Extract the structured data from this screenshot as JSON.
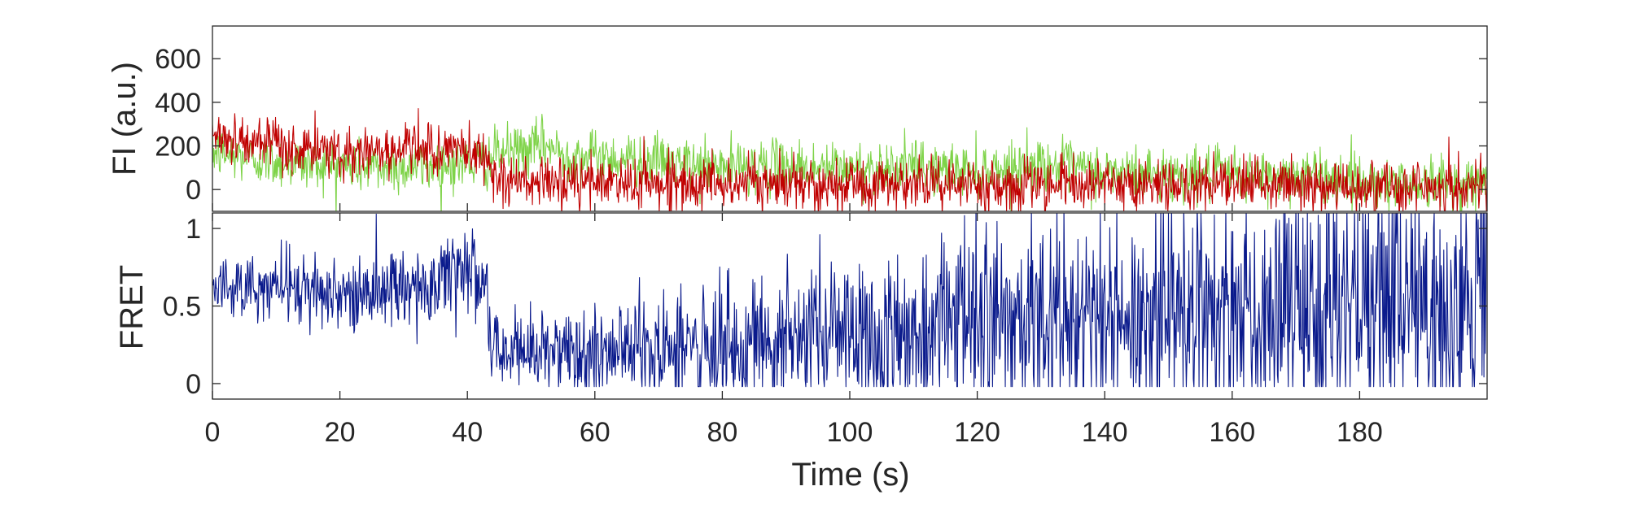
{
  "chart_data": [
    {
      "type": "line",
      "panel": "top",
      "ylabel": "FI (a.u.)",
      "xlim": [
        0,
        200
      ],
      "ylim": [
        -100,
        750
      ],
      "yticks": [
        0,
        200,
        400,
        600
      ],
      "ytick_labels": [
        "0",
        "200",
        "400",
        "600"
      ],
      "grid": false,
      "series": [
        {
          "color": "#7ed348",
          "x": [
            0,
            5,
            10,
            15,
            20,
            25,
            30,
            35,
            40,
            43,
            45,
            50,
            52,
            55,
            60,
            65,
            70,
            75,
            80,
            85,
            90,
            95,
            100,
            105,
            110,
            115,
            120,
            125,
            130,
            135,
            140,
            145,
            150,
            155,
            160,
            165,
            170,
            175,
            180,
            185,
            190,
            195,
            200
          ],
          "values": [
            170,
            150,
            130,
            120,
            110,
            100,
            105,
            110,
            120,
            130,
            170,
            180,
            210,
            160,
            150,
            140,
            130,
            110,
            100,
            110,
            105,
            100,
            95,
            100,
            100,
            90,
            90,
            95,
            120,
            100,
            80,
            75,
            70,
            65,
            70,
            60,
            70,
            60,
            40,
            30,
            30,
            30,
            25
          ],
          "noise": 60
        },
        {
          "color": "#c00000",
          "x": [
            0,
            5,
            10,
            15,
            20,
            25,
            30,
            35,
            40,
            43,
            45,
            50,
            55,
            60,
            65,
            70,
            75,
            80,
            85,
            90,
            95,
            100,
            105,
            110,
            115,
            120,
            125,
            130,
            135,
            140,
            145,
            150,
            155,
            160,
            165,
            170,
            175,
            180,
            185,
            190,
            195,
            200
          ],
          "values": [
            260,
            220,
            190,
            180,
            170,
            175,
            190,
            180,
            180,
            150,
            40,
            30,
            30,
            30,
            35,
            30,
            30,
            30,
            30,
            30,
            30,
            25,
            25,
            25,
            30,
            25,
            25,
            25,
            25,
            20,
            20,
            20,
            20,
            20,
            20,
            20,
            20,
            15,
            15,
            15,
            15,
            15
          ],
          "noise": 60
        }
      ]
    },
    {
      "type": "line",
      "panel": "bottom",
      "xlabel": "Time (s)",
      "ylabel": "FRET",
      "xlim": [
        0,
        200
      ],
      "ylim": [
        -0.1,
        1.1
      ],
      "xticks": [
        0,
        20,
        40,
        60,
        80,
        100,
        120,
        140,
        160,
        180
      ],
      "xtick_labels": [
        "0",
        "20",
        "40",
        "60",
        "80",
        "100",
        "120",
        "140",
        "160",
        "180"
      ],
      "yticks": [
        0,
        0.5,
        1
      ],
      "ytick_labels": [
        "0",
        "0.5",
        "1"
      ],
      "grid": false,
      "series": [
        {
          "color": "#0a1a8c",
          "x": [
            0,
            10,
            20,
            30,
            40,
            43,
            44,
            50,
            60,
            70,
            80,
            90,
            100,
            110,
            115,
            120,
            130,
            140,
            150,
            160,
            170,
            180,
            190,
            200
          ],
          "values": [
            0.62,
            0.62,
            0.58,
            0.62,
            0.68,
            0.6,
            0.2,
            0.22,
            0.2,
            0.22,
            0.28,
            0.3,
            0.28,
            0.32,
            0.45,
            0.42,
            0.45,
            0.42,
            0.45,
            0.48,
            0.48,
            0.5,
            0.5,
            0.52
          ],
          "noise": [
            0.1,
            0.1,
            0.12,
            0.14,
            0.16,
            0.16,
            0.15,
            0.15,
            0.16,
            0.18,
            0.22,
            0.24,
            0.26,
            0.3,
            0.34,
            0.34,
            0.36,
            0.36,
            0.38,
            0.4,
            0.4,
            0.42,
            0.42,
            0.44
          ]
        }
      ]
    }
  ]
}
